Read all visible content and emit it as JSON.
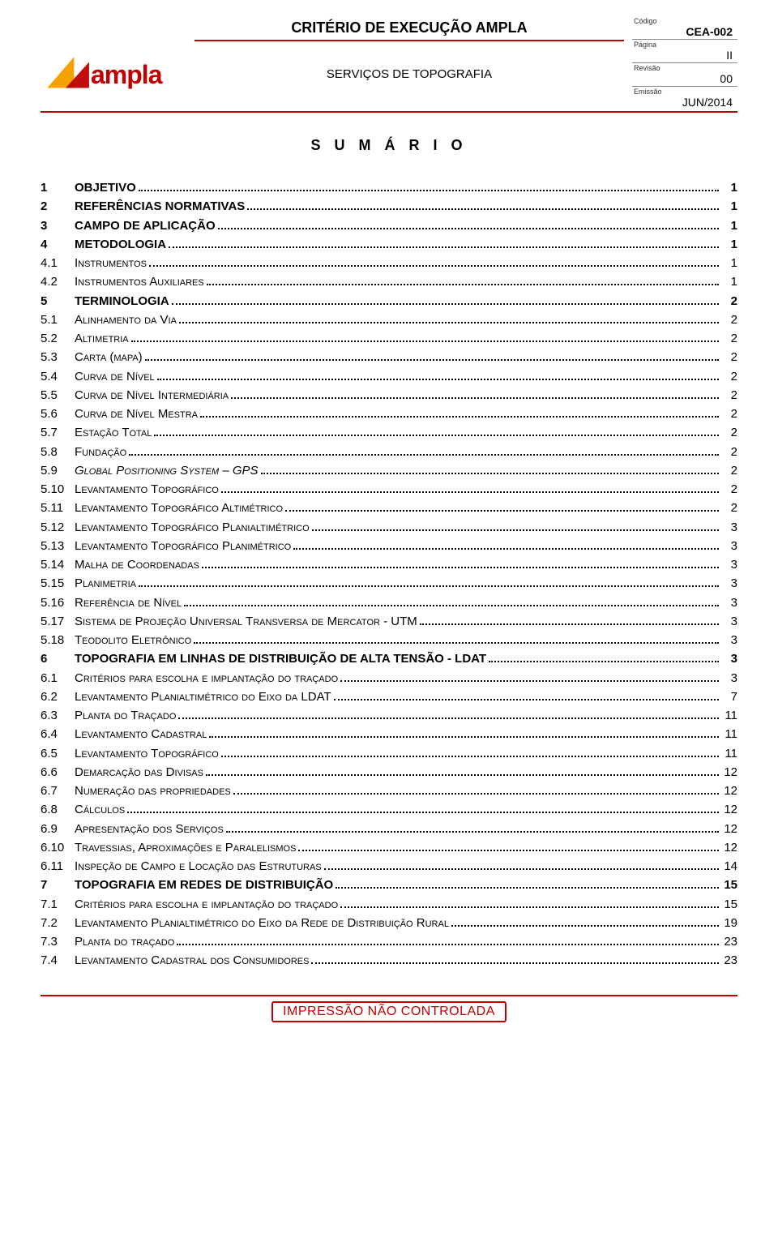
{
  "header": {
    "doc_title": "CRITÉRIO DE EXECUÇÃO AMPLA",
    "doc_subtitle": "SERVIÇOS DE TOPOGRAFIA",
    "meta": {
      "codigo_label": "Código",
      "codigo_value": "CEA-002",
      "pagina_label": "Página",
      "pagina_value": "II",
      "revisao_label": "Revisão",
      "revisao_value": "00",
      "emissao_label": "Emissão",
      "emissao_value": "JUN/2014"
    },
    "logo_text": "ampla"
  },
  "sumario_title": "S U M Á R I O",
  "toc": [
    {
      "num": "1",
      "title": "OBJETIVO",
      "page": "1",
      "bold": true
    },
    {
      "num": "2",
      "title": "REFERÊNCIAS NORMATIVAS",
      "page": "1",
      "bold": true
    },
    {
      "num": "3",
      "title": "CAMPO DE APLICAÇÃO",
      "page": "1",
      "bold": true
    },
    {
      "num": "4",
      "title": "METODOLOGIA",
      "page": "1",
      "bold": true
    },
    {
      "num": "4.1",
      "title": "Instrumentos",
      "page": "1",
      "bold": false,
      "sc": true
    },
    {
      "num": "4.2",
      "title": "Instrumentos Auxiliares",
      "page": "1",
      "bold": false,
      "sc": true
    },
    {
      "num": "5",
      "title": "TERMINOLOGIA",
      "page": "2",
      "bold": true
    },
    {
      "num": "5.1",
      "title": "Alinhamento da Via",
      "page": "2",
      "bold": false,
      "sc": true
    },
    {
      "num": "5.2",
      "title": "Altimetria",
      "page": "2",
      "bold": false,
      "sc": true
    },
    {
      "num": "5.3",
      "title": "Carta (mapa)",
      "page": "2",
      "bold": false,
      "sc": true
    },
    {
      "num": "5.4",
      "title": "Curva de Nível",
      "page": "2",
      "bold": false,
      "sc": true
    },
    {
      "num": "5.5",
      "title": "Curva de Nível Intermediária",
      "page": "2",
      "bold": false,
      "sc": true
    },
    {
      "num": "5.6",
      "title": "Curva de Nível Mestra",
      "page": "2",
      "bold": false,
      "sc": true
    },
    {
      "num": "5.7",
      "title": "Estação Total",
      "page": "2",
      "bold": false,
      "sc": true
    },
    {
      "num": "5.8",
      "title": "Fundação",
      "page": "2",
      "bold": false,
      "sc": true
    },
    {
      "num": "5.9",
      "title": "Global Positioning System – GPS",
      "page": "2",
      "bold": false,
      "sc": true,
      "italic": true
    },
    {
      "num": "5.10",
      "title": "Levantamento Topográfico",
      "page": "2",
      "bold": false,
      "sc": true
    },
    {
      "num": "5.11",
      "title": "Levantamento Topográfico Altimétrico",
      "page": "2",
      "bold": false,
      "sc": true
    },
    {
      "num": "5.12",
      "title": "Levantamento Topográfico Planialtimétrico",
      "page": "3",
      "bold": false,
      "sc": true
    },
    {
      "num": "5.13",
      "title": "Levantamento Topográfico Planimétrico",
      "page": "3",
      "bold": false,
      "sc": true
    },
    {
      "num": "5.14",
      "title": "Malha de Coordenadas",
      "page": "3",
      "bold": false,
      "sc": true
    },
    {
      "num": "5.15",
      "title": "Planimetria",
      "page": "3",
      "bold": false,
      "sc": true
    },
    {
      "num": "5.16",
      "title": "Referência de Nível",
      "page": "3",
      "bold": false,
      "sc": true
    },
    {
      "num": "5.17",
      "title": "Sistema de Projeção Universal Transversa de Mercator - UTM",
      "page": "3",
      "bold": false,
      "sc": true
    },
    {
      "num": "5.18",
      "title": "Teodolito Eletrônico",
      "page": "3",
      "bold": false,
      "sc": true
    },
    {
      "num": "6",
      "title": "TOPOGRAFIA EM LINHAS DE DISTRIBUIÇÃO DE ALTA TENSÃO - LDAT",
      "page": "3",
      "bold": true
    },
    {
      "num": "6.1",
      "title": "Critérios para escolha e implantação do traçado",
      "page": "3",
      "bold": false,
      "sc": true
    },
    {
      "num": "6.2",
      "title": "Levantamento Planialtimétrico do Eixo da LDAT",
      "page": "7",
      "bold": false,
      "sc": true
    },
    {
      "num": "6.3",
      "title": "Planta do Traçado",
      "page": "11",
      "bold": false,
      "sc": true
    },
    {
      "num": "6.4",
      "title": "Levantamento Cadastral",
      "page": "11",
      "bold": false,
      "sc": true
    },
    {
      "num": "6.5",
      "title": "Levantamento Topográfico",
      "page": "11",
      "bold": false,
      "sc": true
    },
    {
      "num": "6.6",
      "title": "Demarcação das Divisas",
      "page": "12",
      "bold": false,
      "sc": true
    },
    {
      "num": "6.7",
      "title": "Numeração das propriedades",
      "page": "12",
      "bold": false,
      "sc": true
    },
    {
      "num": "6.8",
      "title": "Cálculos",
      "page": "12",
      "bold": false,
      "sc": true
    },
    {
      "num": "6.9",
      "title": "Apresentação dos Serviços",
      "page": "12",
      "bold": false,
      "sc": true
    },
    {
      "num": "6.10",
      "title": "Travessias, Aproximações e Paralelismos",
      "page": "12",
      "bold": false,
      "sc": true
    },
    {
      "num": "6.11",
      "title": "Inspeção de Campo e Locação das Estruturas",
      "page": "14",
      "bold": false,
      "sc": true
    },
    {
      "num": "7",
      "title": "TOPOGRAFIA EM REDES DE DISTRIBUIÇÃO",
      "page": "15",
      "bold": true
    },
    {
      "num": "7.1",
      "title": "Critérios para escolha e implantação do traçado",
      "page": "15",
      "bold": false,
      "sc": true
    },
    {
      "num": "7.2",
      "title": "Levantamento Planialtimétrico do Eixo da Rede de Distribuição Rural",
      "page": "19",
      "bold": false,
      "sc": true
    },
    {
      "num": "7.3",
      "title": "Planta do traçado",
      "page": "23",
      "bold": false,
      "sc": true
    },
    {
      "num": "7.4",
      "title": "Levantamento Cadastral dos Consumidores",
      "page": "23",
      "bold": false,
      "sc": true
    }
  ],
  "footer_stamp": "IMPRESSÃO NÃO CONTROLADA",
  "colors": {
    "accent_red": "#c00000",
    "accent_orange": "#f5a100",
    "text": "#000000",
    "background": "#ffffff"
  }
}
